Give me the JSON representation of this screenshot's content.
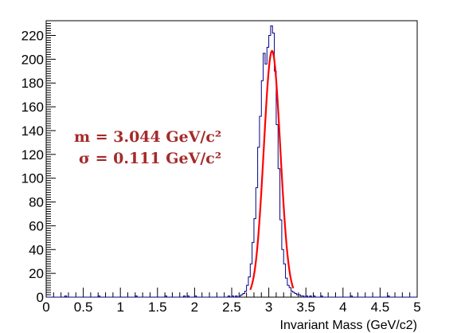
{
  "chart_data": {
    "type": "histogram",
    "title": "",
    "xlabel": "Invariant Mass (GeV/c2)",
    "ylabel": "",
    "xlim": [
      0,
      5
    ],
    "ylim": [
      0,
      235
    ],
    "grid": false,
    "x_tick_labels": [
      "0",
      "0.5",
      "1",
      "1.5",
      "2",
      "2.5",
      "3",
      "3.5",
      "4",
      "4.5",
      "5"
    ],
    "y_tick_labels": [
      "0",
      "20",
      "40",
      "60",
      "80",
      "100",
      "120",
      "140",
      "160",
      "180",
      "200",
      "220"
    ],
    "series": [
      {
        "kind": "histogram",
        "bin_width": 0.025,
        "bins_x_start": [
          0.25,
          0.7,
          1.2,
          1.6,
          1.85,
          1.9,
          2.0,
          2.45,
          2.5,
          2.55,
          2.6,
          2.625,
          2.65,
          2.675,
          2.7,
          2.725,
          2.75,
          2.775,
          2.8,
          2.825,
          2.85,
          2.875,
          2.9,
          2.925,
          2.95,
          2.975,
          3.0,
          3.025,
          3.05,
          3.075,
          3.1,
          3.125,
          3.15,
          3.175,
          3.2,
          3.225,
          3.25,
          3.275,
          3.3,
          3.325,
          3.35,
          3.375,
          3.4,
          3.425,
          3.45,
          3.5,
          3.55,
          3.6,
          3.7,
          4.1,
          4.6
        ],
        "counts": [
          1,
          1,
          1,
          1,
          1,
          1,
          1,
          1,
          1,
          1,
          1,
          2,
          3,
          5,
          10,
          17,
          28,
          46,
          66,
          92,
          126,
          152,
          182,
          205,
          196,
          210,
          220,
          228,
          222,
          190,
          145,
          108,
          65,
          40,
          28,
          16,
          10,
          8,
          5,
          4,
          3,
          2,
          2,
          1,
          1,
          1,
          1,
          1,
          1,
          1,
          1
        ],
        "color": "#00008b"
      },
      {
        "kind": "gaussian_fit",
        "mean": 3.044,
        "sigma": 0.111,
        "amplitude": 207,
        "x_range": [
          2.75,
          3.33
        ],
        "color": "#ff0000"
      }
    ],
    "annotations": [
      {
        "text": "m = 3.044 GeV/c²",
        "color": "#a52a2a"
      },
      {
        "text": "σ = 0.111 GeV/c²",
        "color": "#a52a2a"
      }
    ]
  }
}
